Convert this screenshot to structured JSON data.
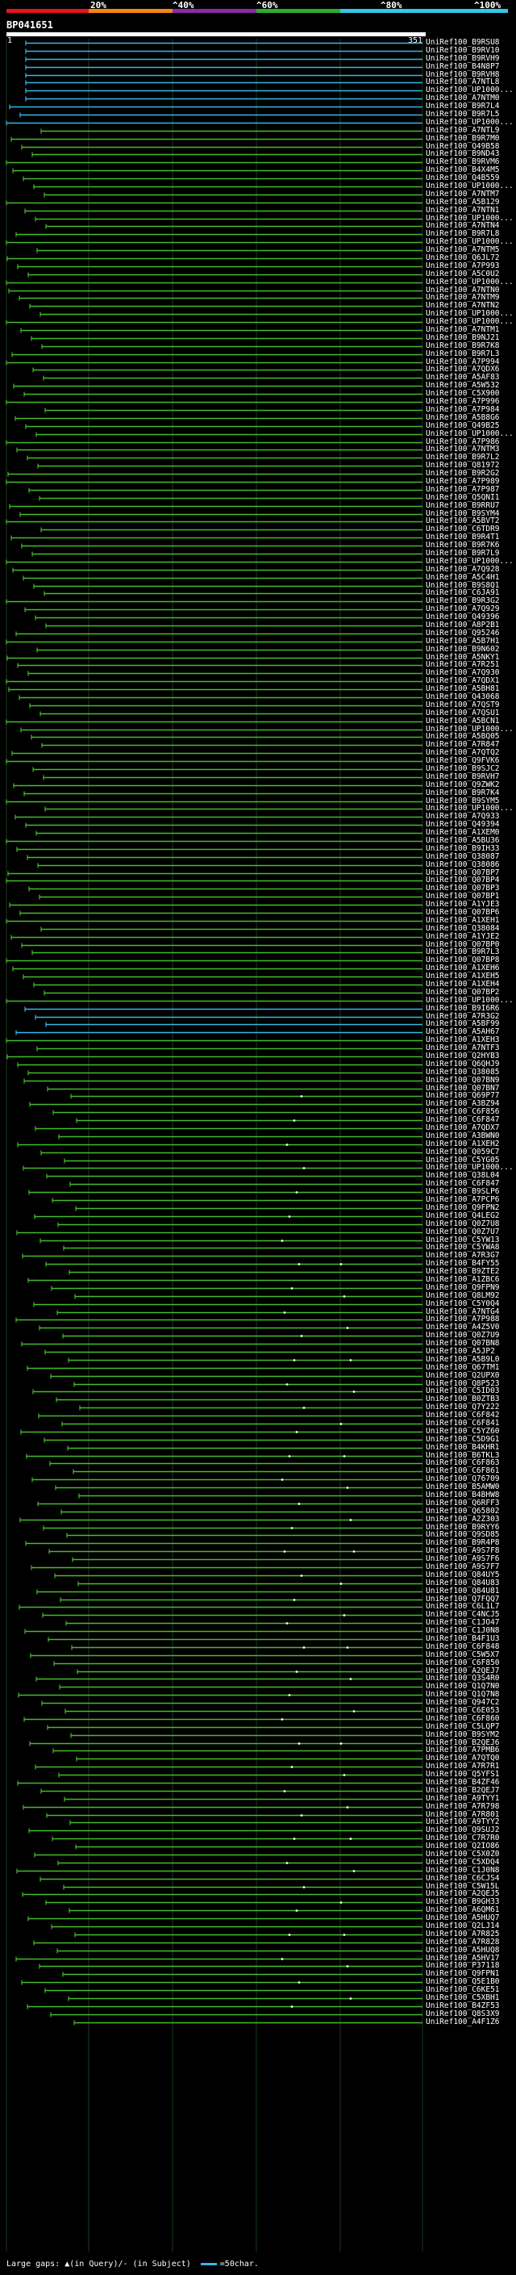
{
  "scale": {
    "ticks": [
      "20%",
      "^40%",
      "^60%",
      "^80%",
      "^100%"
    ],
    "colors": [
      "#e8141c",
      "#f58416",
      "#8b2aa8",
      "#2cae2c",
      "#35c6e8"
    ]
  },
  "query": {
    "name": "BP041651",
    "start": "1",
    "end": "351"
  },
  "legend": {
    "text": "Large gaps: ▲(in Query)/- (in Subject)",
    "swatch_label": "=50char."
  },
  "colors": {
    "green": "#44bb2b",
    "cyan": "#35b7e8",
    "white": "#ffffff"
  },
  "hits": [
    "UniRef100_B9RSU8",
    "UniRef100_B9RV10",
    "UniRef100_B9RVH9",
    "UniRef100_B4N8P7",
    "UniRef100_B9RVH8",
    "UniRef100_A7NTL8",
    "UniRef100_UP1000...",
    "UniRef100_A7NTM0",
    "UniRef100_B9R7L4",
    "UniRef100_B9R7L5",
    "UniRef100_UP1000...",
    "UniRef100_A7NTL9",
    "UniRef100_B9R7M0",
    "UniRef100_Q49B58",
    "UniRef100_B9ND43",
    "UniRef100_B9RVM6",
    "UniRef100_B4X4M5",
    "UniRef100_Q4B559",
    "UniRef100_UP1000...",
    "UniRef100_A7NTM7",
    "UniRef100_A5B129",
    "UniRef100_A7NTN1",
    "UniRef100_UP1000...",
    "UniRef100_A7NTN4",
    "UniRef100_B9R7L8",
    "UniRef100_UP1000...",
    "UniRef100_A7NTM5",
    "UniRef100_Q6JL72",
    "UniRef100_A7P993",
    "UniRef100_A5C0U2",
    "UniRef100_UP1000...",
    "UniRef100_A7NTN0",
    "UniRef100_A7NTM9",
    "UniRef100_A7NTN2",
    "UniRef100_UP1000...",
    "UniRef100_UP1000...",
    "UniRef100_A7NTM1",
    "UniRef100_B9NJ21",
    "UniRef100_B9R7K8",
    "UniRef100_B9R7L3",
    "UniRef100_A7P994",
    "UniRef100_A7QDX6",
    "UniRef100_A5AF83",
    "UniRef100_A5W532",
    "UniRef100_C5X900",
    "UniRef100_A7P996",
    "UniRef100_A7P984",
    "UniRef100_A5B8G6",
    "UniRef100_Q49B25",
    "UniRef100_UP1000...",
    "UniRef100_A7P986",
    "UniRef100_A7NTM3",
    "UniRef100_B9R7L2",
    "UniRef100_Q81972",
    "UniRef100_B9R2G2",
    "UniRef100_A7P989",
    "UniRef100_A7P987",
    "UniRef100_Q5QNI1",
    "UniRef100_B9RRU7",
    "UniRef100_B9SYM4",
    "UniRef100_A5BVT2",
    "UniRef100_C6TDR9",
    "UniRef100_B9R4T1",
    "UniRef100_B9R7K6",
    "UniRef100_B9R7L9",
    "UniRef100_UP1000...",
    "UniRef100_A7Q928",
    "UniRef100_A5C4H1",
    "UniRef100_B9S8Q1",
    "UniRef100_C6JA91",
    "UniRef100_B9R3G2",
    "UniRef100_A7Q929",
    "UniRef100_Q49396",
    "UniRef100_A8P2B1",
    "UniRef100_Q95246",
    "UniRef100_A5B7H1",
    "UniRef100_B9N602",
    "UniRef100_A5NKY1",
    "UniRef100_A7R251",
    "UniRef100_A7Q930",
    "UniRef100_A7QDX1",
    "UniRef100_A5BH81",
    "UniRef100_Q43068",
    "UniRef100_A7QST9",
    "UniRef100_A7QSU1",
    "UniRef100_A5BCN1",
    "UniRef100_UP1000...",
    "UniRef100_A5BQ05",
    "UniRef100_A7R847",
    "UniRef100_A7QTQ2",
    "UniRef100_Q9FVK6",
    "UniRef100_B9SJC2",
    "UniRef100_B9RVH7",
    "UniRef100_Q9ZWK2",
    "UniRef100_B9R7K4",
    "UniRef100_B9SYM5",
    "UniRef100_UP1000...",
    "UniRef100_A7Q933",
    "UniRef100_Q49394",
    "UniRef100_A1XEM0",
    "UniRef100_A5BU36",
    "UniRef100_B9IH33",
    "UniRef100_Q38087",
    "UniRef100_Q38086",
    "UniRef100_Q07BP7",
    "UniRef100_Q07BP4",
    "UniRef100_Q07BP3",
    "UniRef100_Q07BP1",
    "UniRef100_A1YJE3",
    "UniRef100_Q07BP6",
    "UniRef100_A1XEH1",
    "UniRef100_Q38084",
    "UniRef100_A1YJE2",
    "UniRef100_Q07BP0",
    "UniRef100_B9R7L3",
    "UniRef100_Q07BP8",
    "UniRef100_A1XEH6",
    "UniRef100_A1XEH5",
    "UniRef100_A1XEH4",
    "UniRef100_Q07BP2",
    "UniRef100_UP1000...",
    "UniRef100_B9I6R6",
    "UniRef100_A7R3G2",
    "UniRef100_A5BF99",
    "UniRef100_A5AH67",
    "UniRef100_A1XEH3",
    "UniRef100_A7NTF3",
    "UniRef100_Q2HYB3",
    "UniRef100_Q6QHJ9",
    "UniRef100_Q38085",
    "UniRef100_Q07BN9",
    "UniRef100_Q07BN7",
    "UniRef100_Q69P77",
    "UniRef100_A3BZ94",
    "UniRef100_C6F856",
    "UniRef100_C6F847",
    "UniRef100_A7QDX7",
    "UniRef100_A3BWN0",
    "UniRef100_A1XEH2",
    "UniRef100_Q059C7",
    "UniRef100_C5YG05",
    "UniRef100_UP1000...",
    "UniRef100_Q38L04",
    "UniRef100_C6F847",
    "UniRef100_B9SLP6",
    "UniRef100_A7PCP6",
    "UniRef100_Q9FPN2",
    "UniRef100_Q4LEG2",
    "UniRef100_Q0Z7U8",
    "UniRef100_Q0Z7U7",
    "UniRef100_C5YW13",
    "UniRef100_C5YWA8",
    "UniRef100_A7R3G7",
    "UniRef100_B4FY55",
    "UniRef100_B9ZTE2",
    "UniRef100_A1ZBC6",
    "UniRef100_Q9FPN9",
    "UniRef100_Q8LM92",
    "UniRef100_C5Y0Q4",
    "UniRef100_A7NTG4",
    "UniRef100_A7P988",
    "UniRef100_A4Z5V0",
    "UniRef100_Q0Z7U9",
    "UniRef100_Q07BN8",
    "UniRef100_A5JP2",
    "UniRef100_A5B9L0",
    "UniRef100_Q67TM1",
    "UniRef100_Q2UPX0",
    "UniRef100_Q8P523",
    "UniRef100_C5ID03",
    "UniRef100_B0ZTB3",
    "UniRef100_Q7Y222",
    "UniRef100_C6F842",
    "UniRef100_C6F841",
    "UniRef100_C5YZ60",
    "UniRef100_C5D9G1",
    "UniRef100_B4KHR1",
    "UniRef100_B6TKL3",
    "UniRef100_C6F863",
    "UniRef100_C6F861",
    "UniRef100_Q76709",
    "UniRef100_B5AMW0",
    "UniRef100_B4BHW8",
    "UniRef100_Q6RFF3",
    "UniRef100_Q65802",
    "UniRef100_A2Z303",
    "UniRef100_B9RYY6",
    "UniRef100_Q9SD85",
    "UniRef100_B9R4P8",
    "UniRef100_A9S7F8",
    "UniRef100_A9S7F6",
    "UniRef100_A9S7F7",
    "UniRef100_Q84UY5",
    "UniRef100_Q84U83",
    "UniRef100_Q84U81",
    "UniRef100_Q7FQQ7",
    "UniRef100_C6L1L7",
    "UniRef100_C4NCJ5",
    "UniRef100_C1JO47",
    "UniRef100_C1J0N8",
    "UniRef100_B4F1U3",
    "UniRef100_C6F848",
    "UniRef100_C5W5X7",
    "UniRef100_C6F850",
    "UniRef100_A2QEJ7",
    "UniRef100_Q3S4R0",
    "UniRef100_Q1Q7N0",
    "UniRef100_Q1Q7N8",
    "UniRef100_Q947C2",
    "UniRef100_C6E053",
    "UniRef100_C6F860",
    "UniRef100_C5LQP7",
    "UniRef100_B9SYM2",
    "UniRef100_B2QEJ6",
    "UniRef100_A7PMB6",
    "UniRef100_A7QTQ0",
    "UniRef100_A7R7R1",
    "UniRef100_Q5YFS1",
    "UniRef100_B4ZF46",
    "UniRef100_B2QEJ7",
    "UniRef100_A9TYY1",
    "UniRef100_A7R798",
    "UniRef100_A7R801",
    "UniRef100_A9TYY2",
    "UniRef100_Q9SUJ2",
    "UniRef100_C7R7R0",
    "UniRef100_Q2IO86",
    "UniRef100_C5X0Z0",
    "UniRef100_C5XDQ4",
    "UniRef100_C1J0N8",
    "UniRef100_C6CJS4",
    "UniRef100_C5W15L",
    "UniRef100_A2QEJ5",
    "UniRef100_B9GH33",
    "UniRef100_A6QM61",
    "UniRef100_A5HUQ7",
    "UniRef100_Q2LJ14",
    "UniRef100_A7R825",
    "UniRef100_A7R828",
    "UniRef100_A5HUQ8",
    "UniRef100_A5HV17",
    "UniRef100_P37118",
    "UniRef100_Q9FPN1",
    "UniRef100_Q5E1B0",
    "UniRef100_C6KE51",
    "UniRef100_C5XBH1",
    "UniRef100_B4ZF53",
    "UniRef100_Q8S3X9",
    "UniRef100_A4F1Z6"
  ]
}
